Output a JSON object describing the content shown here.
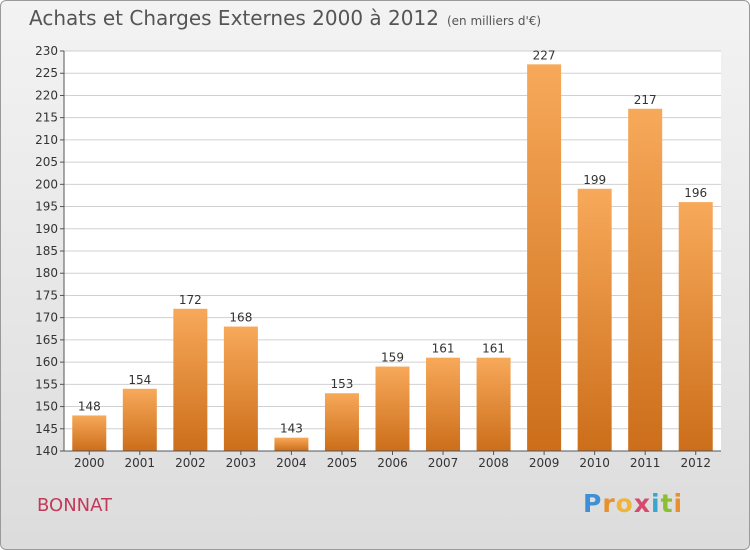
{
  "header": {
    "title": "Achats et Charges Externes 2000 à 2012",
    "unit": "(en milliers d'€)"
  },
  "town": "BONNAT",
  "logo": {
    "text": "Proxiti",
    "letters": [
      "P",
      "r",
      "o",
      "x",
      "i",
      "t",
      "i"
    ]
  },
  "colors": {
    "bar_light": "#f7a95a",
    "bar_dark": "#cc6e1a",
    "plot_bg": "#ffffff",
    "grid": "#d0d0d0",
    "town": "#c23a5a"
  },
  "chart_data": {
    "type": "bar",
    "title": "Achats et Charges Externes 2000 à 2012",
    "subtitle": "(en milliers d'€)",
    "categories": [
      "2000",
      "2001",
      "2002",
      "2003",
      "2004",
      "2005",
      "2006",
      "2007",
      "2008",
      "2009",
      "2010",
      "2011",
      "2012"
    ],
    "values": [
      148,
      154,
      172,
      168,
      143,
      153,
      159,
      161,
      161,
      227,
      199,
      217,
      196
    ],
    "ylim": [
      140,
      230
    ],
    "yticks": [
      140,
      145,
      150,
      155,
      160,
      165,
      170,
      175,
      180,
      185,
      190,
      195,
      200,
      205,
      210,
      215,
      220,
      225,
      230
    ],
    "grid": true,
    "data_labels": true
  }
}
